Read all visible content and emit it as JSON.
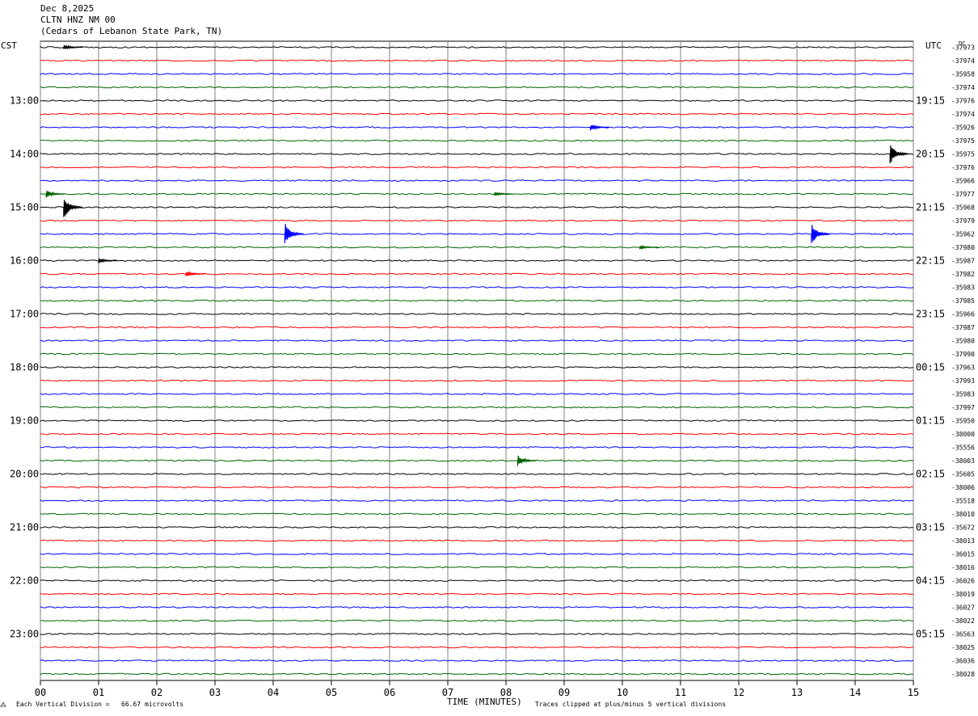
{
  "header": {
    "date": "Dec 8,2025",
    "station": "CLTN HNZ NM 00",
    "location": "(Cedars of Lebanon State Park, TN)"
  },
  "left_tz": "CST",
  "right_tz": "UTC",
  "right_corner_label": "DC",
  "footer": {
    "scale_text": "Each Vertical Division =   66.67 microvolts",
    "xlabel": "TIME (MINUTES)",
    "clip_text": "Traces clipped at plus/minus 5 vertical divisions"
  },
  "colors": {
    "trace_cycle": [
      "#000000",
      "#ff0000",
      "#0000ff",
      "#006400"
    ],
    "grid": "#808080"
  },
  "chart_data": {
    "type": "line",
    "title": "CLTN HNZ NM 00",
    "xlabel": "TIME (MINUTES)",
    "x_ticks": [
      "00",
      "01",
      "02",
      "03",
      "04",
      "05",
      "06",
      "07",
      "08",
      "09",
      "10",
      "11",
      "12",
      "13",
      "14",
      "15"
    ],
    "xlim": [
      0,
      15
    ],
    "trace_count": 48,
    "minutes_per_trace": 15,
    "left_hour_labels": [
      "13:00",
      "14:00",
      "15:00",
      "16:00",
      "17:00",
      "18:00",
      "19:00",
      "20:00",
      "21:00",
      "22:00",
      "23:00"
    ],
    "right_hour_labels": [
      "19:15",
      "20:15",
      "21:15",
      "22:15",
      "23:15",
      "00:15",
      "01:15",
      "02:15",
      "03:15",
      "04:15",
      "05:15"
    ],
    "trace_dc_offsets": [
      "-37973",
      "-37974",
      "-35958",
      "-37974",
      "-37976",
      "-37974",
      "-35926",
      "-37975",
      "-35975",
      "-37976",
      "-35966",
      "-37977",
      "-35968",
      "-37979",
      "-35962",
      "-37980",
      "-35987",
      "-37982",
      "-35983",
      "-37985",
      "-35966",
      "-37987",
      "-35980",
      "-37990",
      "-37963",
      "-37993",
      "-35983",
      "-37997",
      "-35950",
      "-38000",
      "-35556",
      "-38003",
      "-35605",
      "-38006",
      "-35518",
      "-38010",
      "-35672",
      "-38013",
      "-36015",
      "-38016",
      "-36026",
      "-38019",
      "-36027",
      "-38022",
      "-36563",
      "-38025",
      "-36036",
      "-38028"
    ],
    "events": [
      {
        "trace": 0,
        "minute": 0.4,
        "amplitude": 0.4
      },
      {
        "trace": 6,
        "minute": 9.45,
        "amplitude": 0.5
      },
      {
        "trace": 8,
        "minute": 14.6,
        "amplitude": 1.6
      },
      {
        "trace": 11,
        "minute": 0.1,
        "amplitude": 0.6
      },
      {
        "trace": 11,
        "minute": 7.8,
        "amplitude": 0.3
      },
      {
        "trace": 12,
        "minute": 0.4,
        "amplitude": 1.8
      },
      {
        "trace": 14,
        "minute": 4.2,
        "amplitude": 1.7
      },
      {
        "trace": 14,
        "minute": 13.25,
        "amplitude": 1.6
      },
      {
        "trace": 15,
        "minute": 10.3,
        "amplitude": 0.3
      },
      {
        "trace": 16,
        "minute": 1.0,
        "amplitude": 0.4
      },
      {
        "trace": 17,
        "minute": 2.5,
        "amplitude": 0.4
      },
      {
        "trace": 31,
        "minute": 8.2,
        "amplitude": 0.9
      }
    ]
  }
}
